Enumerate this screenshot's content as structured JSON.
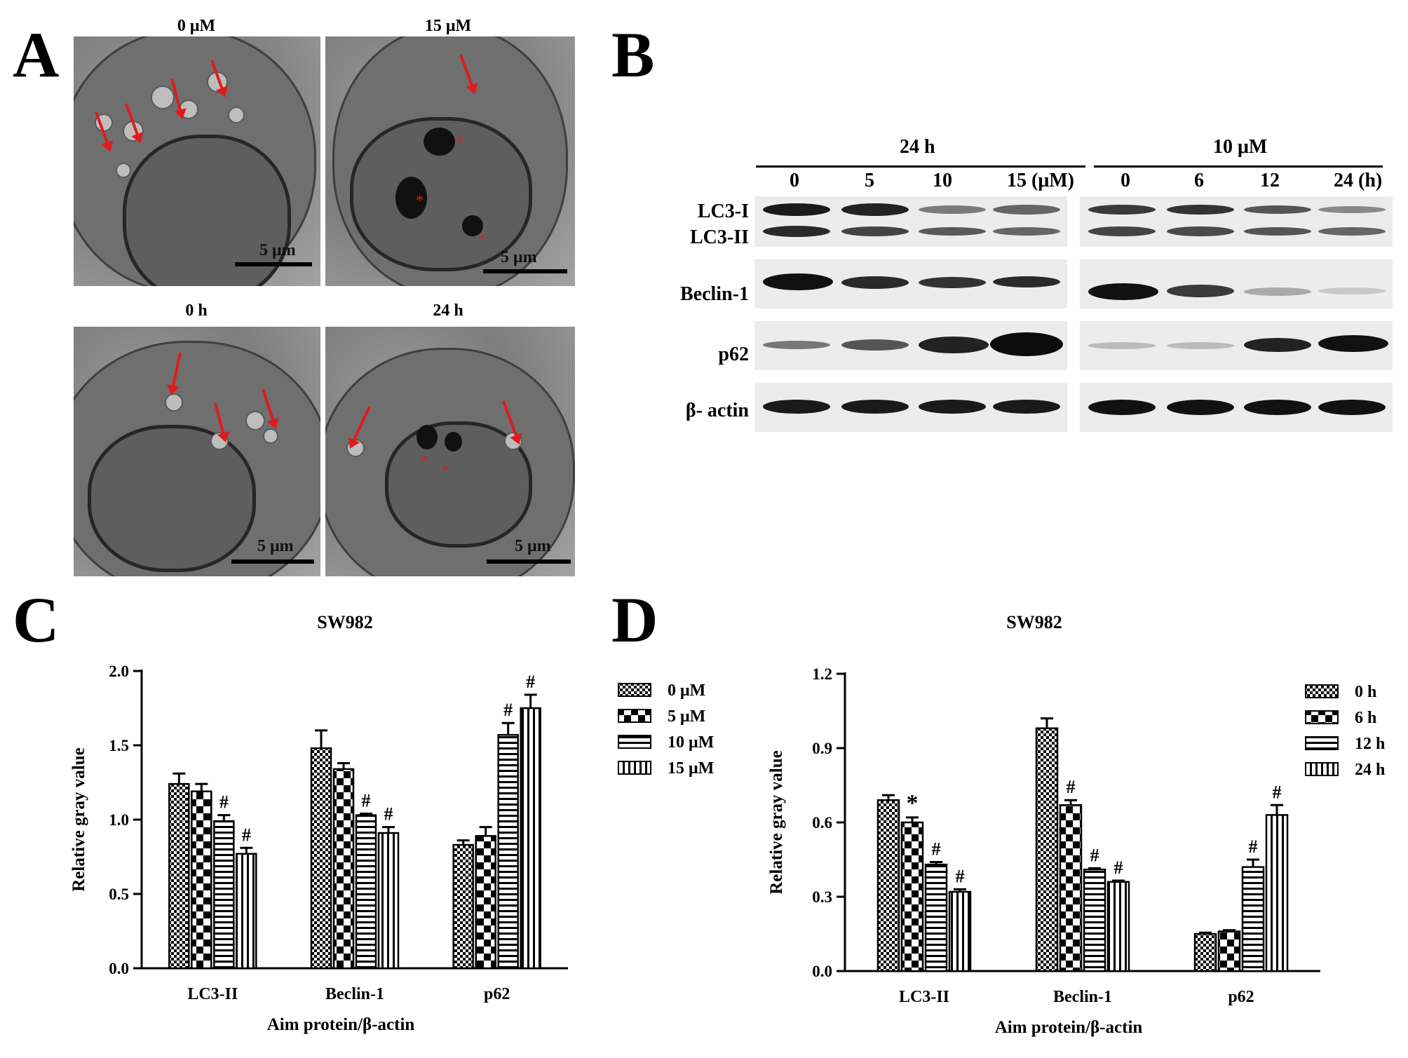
{
  "panel_letters": {
    "A": "A",
    "B": "B",
    "C": "C",
    "D": "D"
  },
  "panelA": {
    "labels": [
      "0 μM",
      "15 μM",
      "0 h",
      "24 h"
    ],
    "scalebar": "5 μm"
  },
  "panelB": {
    "group_24h": "24 h",
    "group_10uM": "10 μM",
    "conc_lanes": [
      "0",
      "5",
      "10",
      "15 (μM)"
    ],
    "time_lanes": [
      "0",
      "6",
      "12",
      "24 (h)"
    ],
    "rows": [
      "LC3-I",
      "LC3-II",
      "Beclin-1",
      "p62",
      "β- actin"
    ]
  },
  "chart_data": [
    {
      "type": "bar",
      "title": "SW982",
      "xlabel": "Aim protein/β-actin",
      "ylabel": "Relative gray value",
      "categories": [
        "LC3-II",
        "Beclin-1",
        "p62"
      ],
      "ylim": [
        0,
        2.0
      ],
      "yticks": [
        "0.0",
        "0.5",
        "1.0",
        "1.5",
        "2.0"
      ],
      "series": [
        {
          "name": "0 μM",
          "values": [
            1.24,
            1.48,
            0.83
          ],
          "errors": [
            0.07,
            0.12,
            0.03
          ],
          "marks": [
            "",
            "",
            ""
          ]
        },
        {
          "name": "5 μM",
          "values": [
            1.19,
            1.34,
            0.89
          ],
          "errors": [
            0.05,
            0.04,
            0.06
          ],
          "marks": [
            "",
            "",
            ""
          ]
        },
        {
          "name": "10 μM",
          "values": [
            0.99,
            1.03,
            1.57
          ],
          "errors": [
            0.04,
            0.01,
            0.08
          ],
          "marks": [
            "#",
            "#",
            "#"
          ]
        },
        {
          "name": "15 μM",
          "values": [
            0.77,
            0.91,
            1.75
          ],
          "errors": [
            0.04,
            0.04,
            0.09
          ],
          "marks": [
            "#",
            "#",
            "#"
          ]
        }
      ]
    },
    {
      "type": "bar",
      "title": "SW982",
      "xlabel": "Aim protein/β-actin",
      "ylabel": "Relative gray value",
      "categories": [
        "LC3-II",
        "Beclin-1",
        "p62"
      ],
      "ylim": [
        0,
        1.2
      ],
      "yticks": [
        "0.0",
        "0.3",
        "0.6",
        "0.9",
        "1.2"
      ],
      "series": [
        {
          "name": "0 h",
          "values": [
            0.69,
            0.98,
            0.15
          ],
          "errors": [
            0.02,
            0.04,
            0.005
          ],
          "marks": [
            "",
            "",
            ""
          ]
        },
        {
          "name": "6 h",
          "values": [
            0.6,
            0.67,
            0.16
          ],
          "errors": [
            0.02,
            0.02,
            0.005
          ],
          "marks": [
            "*",
            "#",
            ""
          ]
        },
        {
          "name": "12 h",
          "values": [
            0.43,
            0.41,
            0.42
          ],
          "errors": [
            0.01,
            0.005,
            0.03
          ],
          "marks": [
            "#",
            "#",
            "#"
          ]
        },
        {
          "name": "24 h",
          "values": [
            0.32,
            0.36,
            0.63
          ],
          "errors": [
            0.01,
            0.005,
            0.04
          ],
          "marks": [
            "#",
            "#",
            "#"
          ]
        }
      ]
    }
  ]
}
